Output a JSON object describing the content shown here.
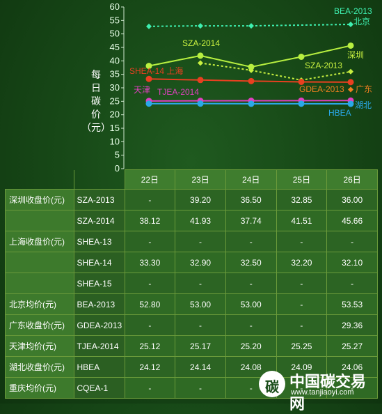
{
  "chart_data": {
    "type": "line",
    "ylabel": "每日碳价（元）",
    "ylim": [
      0,
      60
    ],
    "yticks": [
      0,
      5,
      10,
      15,
      20,
      25,
      30,
      35,
      40,
      45,
      50,
      55,
      60
    ],
    "categories": [
      "22日",
      "23日",
      "24日",
      "25日",
      "26日"
    ],
    "series": [
      {
        "name": "SZA-2013",
        "label": "SZA-2013",
        "color": "#c8f040",
        "marker": "diamond",
        "dashed": true,
        "values": [
          null,
          39.2,
          36.5,
          32.85,
          36.0
        ]
      },
      {
        "name": "SZA-2014",
        "label": "SZA-2014",
        "color": "#b8f040",
        "marker": "circle",
        "dashed": false,
        "values": [
          38.12,
          41.93,
          37.74,
          41.51,
          45.66
        ]
      },
      {
        "name": "SHEA-14",
        "label": "SHEA-14 上海",
        "color": "#e84020",
        "marker": "circle",
        "dashed": false,
        "values": [
          33.3,
          32.9,
          32.5,
          32.2,
          32.1
        ]
      },
      {
        "name": "BEA-2013",
        "label": "BEA-2013",
        "color": "#3ef0b0",
        "marker": "diamond",
        "dashed": true,
        "values": [
          52.8,
          53.0,
          53.0,
          null,
          53.53
        ]
      },
      {
        "name": "GDEA-2013",
        "label": "GDEA-2013",
        "color": "#f08020",
        "marker": "diamond",
        "dashed": false,
        "values": [
          null,
          null,
          null,
          null,
          29.36
        ]
      },
      {
        "name": "TJEA-2014",
        "label": "TJEA-2014",
        "color": "#e040c0",
        "marker": "circle",
        "dashed": false,
        "values": [
          25.12,
          25.17,
          25.2,
          25.25,
          25.27
        ]
      },
      {
        "name": "HBEA",
        "label": "HBEA",
        "color": "#2aa8e8",
        "marker": "circle",
        "dashed": false,
        "values": [
          24.12,
          24.14,
          24.08,
          24.09,
          24.06
        ]
      }
    ],
    "region_labels": {
      "beijing": "北京",
      "shenzhen": "深圳",
      "guangdong": "广东",
      "tianjin": "天津",
      "hubei": "湖北"
    }
  },
  "table": {
    "headers": [
      "22日",
      "23日",
      "24日",
      "25日",
      "26日"
    ],
    "rows": [
      {
        "market": "深圳收盘价(元)",
        "contract": "SZA-2013",
        "values": [
          "-",
          "39.20",
          "36.50",
          "32.85",
          "36.00"
        ]
      },
      {
        "market": "",
        "contract": "SZA-2014",
        "values": [
          "38.12",
          "41.93",
          "37.74",
          "41.51",
          "45.66"
        ]
      },
      {
        "market": "上海收盘价(元)",
        "contract": "SHEA-13",
        "values": [
          "-",
          "-",
          "-",
          "-",
          "-"
        ]
      },
      {
        "market": "",
        "contract": "SHEA-14",
        "values": [
          "33.30",
          "32.90",
          "32.50",
          "32.20",
          "32.10"
        ]
      },
      {
        "market": "",
        "contract": "SHEA-15",
        "values": [
          "-",
          "-",
          "-",
          "-",
          "-"
        ]
      },
      {
        "market": "北京均价(元)",
        "contract": "BEA-2013",
        "values": [
          "52.80",
          "53.00",
          "53.00",
          "-",
          "53.53"
        ]
      },
      {
        "market": "广东收盘价(元)",
        "contract": "GDEA-2013",
        "values": [
          "-",
          "-",
          "-",
          "-",
          "29.36"
        ]
      },
      {
        "market": "天津均价(元)",
        "contract": "TJEA-2014",
        "values": [
          "25.12",
          "25.17",
          "25.20",
          "25.25",
          "25.27"
        ]
      },
      {
        "market": "湖北收盘价(元)",
        "contract": "HBEA",
        "values": [
          "24.12",
          "24.14",
          "24.08",
          "24.09",
          "24.06"
        ]
      },
      {
        "market": "重庆均价(元)",
        "contract": "CQEA-1",
        "values": [
          "-",
          "-",
          "-",
          "-",
          "-"
        ]
      }
    ]
  },
  "watermark": {
    "logo": "碳",
    "title": "中国碳交易网",
    "url": "www.tanjiaoyi.com"
  }
}
